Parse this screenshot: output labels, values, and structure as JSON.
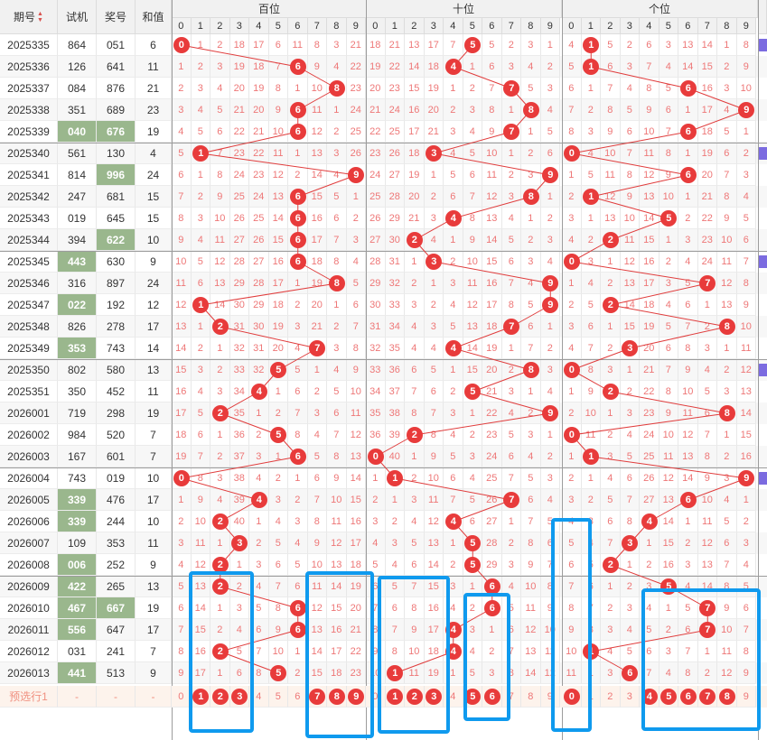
{
  "header": {
    "col_issue": "期号",
    "col_trial": "试机",
    "col_prize": "奖号",
    "col_sum": "和值",
    "group_hundreds": "百位",
    "group_tens": "十位",
    "group_units": "个位",
    "digits": [
      "0",
      "1",
      "2",
      "3",
      "4",
      "5",
      "6",
      "7",
      "8",
      "9"
    ]
  },
  "rows": [
    {
      "issue": "2025335",
      "trial": "864",
      "prize": "051",
      "sum": "6",
      "h": [
        "0",
        "1",
        "2",
        "18",
        "17",
        "6",
        "11",
        "8",
        "3",
        "21"
      ],
      "t": [
        "18",
        "21",
        "13",
        "17",
        "7",
        "5",
        "5",
        "2",
        "3",
        "1"
      ],
      "u": [
        "4",
        "1",
        "5",
        "2",
        "6",
        "3",
        "13",
        "14",
        "1",
        "8"
      ]
    },
    {
      "issue": "2025336",
      "trial": "126",
      "prize": "641",
      "sum": "11",
      "h": [
        "1",
        "2",
        "3",
        "19",
        "18",
        "7",
        "6",
        "9",
        "4",
        "22"
      ],
      "t": [
        "19",
        "22",
        "14",
        "18",
        "4",
        "1",
        "6",
        "3",
        "4",
        "2"
      ],
      "u": [
        "5",
        "1",
        "6",
        "3",
        "7",
        "4",
        "14",
        "15",
        "2",
        "9"
      ]
    },
    {
      "issue": "2025337",
      "trial": "084",
      "prize": "876",
      "sum": "21",
      "h": [
        "2",
        "3",
        "4",
        "20",
        "19",
        "8",
        "1",
        "10",
        "8",
        "23"
      ],
      "t": [
        "20",
        "23",
        "15",
        "19",
        "1",
        "2",
        "7",
        "7",
        "5",
        "3"
      ],
      "u": [
        "6",
        "1",
        "7",
        "4",
        "8",
        "5",
        "6",
        "16",
        "3",
        "10"
      ]
    },
    {
      "issue": "2025338",
      "trial": "351",
      "prize": "689",
      "sum": "23",
      "h": [
        "3",
        "4",
        "5",
        "21",
        "20",
        "9",
        "6",
        "11",
        "1",
        "24"
      ],
      "t": [
        "21",
        "24",
        "16",
        "20",
        "2",
        "3",
        "8",
        "1",
        "8",
        "4"
      ],
      "u": [
        "7",
        "2",
        "8",
        "5",
        "9",
        "6",
        "1",
        "17",
        "4",
        "9"
      ]
    },
    {
      "issue": "2025339",
      "trial": "040",
      "prize": "676",
      "sum": "19",
      "h": [
        "4",
        "5",
        "6",
        "22",
        "21",
        "10",
        "6",
        "12",
        "2",
        "25"
      ],
      "t": [
        "22",
        "25",
        "17",
        "21",
        "3",
        "4",
        "9",
        "7",
        "1",
        "5"
      ],
      "u": [
        "8",
        "3",
        "9",
        "6",
        "10",
        "7",
        "6",
        "18",
        "5",
        "1"
      ]
    },
    {
      "issue": "2025340",
      "trial": "561",
      "prize": "130",
      "sum": "4",
      "h": [
        "5",
        "1",
        "7",
        "23",
        "22",
        "11",
        "1",
        "13",
        "3",
        "26"
      ],
      "t": [
        "23",
        "26",
        "18",
        "3",
        "4",
        "5",
        "10",
        "1",
        "2",
        "6"
      ],
      "u": [
        "0",
        "4",
        "10",
        "7",
        "11",
        "8",
        "1",
        "19",
        "6",
        "2"
      ]
    },
    {
      "issue": "2025341",
      "trial": "814",
      "prize": "996",
      "sum": "24",
      "h": [
        "6",
        "1",
        "8",
        "24",
        "23",
        "12",
        "2",
        "14",
        "4",
        "9"
      ],
      "t": [
        "24",
        "27",
        "19",
        "1",
        "5",
        "6",
        "11",
        "2",
        "3",
        "9"
      ],
      "u": [
        "1",
        "5",
        "11",
        "8",
        "12",
        "9",
        "6",
        "20",
        "7",
        "3"
      ]
    },
    {
      "issue": "2025342",
      "trial": "247",
      "prize": "681",
      "sum": "15",
      "h": [
        "7",
        "2",
        "9",
        "25",
        "24",
        "13",
        "6",
        "15",
        "5",
        "1"
      ],
      "t": [
        "25",
        "28",
        "20",
        "2",
        "6",
        "7",
        "12",
        "3",
        "8",
        "1"
      ],
      "u": [
        "2",
        "1",
        "12",
        "9",
        "13",
        "10",
        "1",
        "21",
        "8",
        "4"
      ]
    },
    {
      "issue": "2025343",
      "trial": "019",
      "prize": "645",
      "sum": "15",
      "h": [
        "8",
        "3",
        "10",
        "26",
        "25",
        "14",
        "6",
        "16",
        "6",
        "2"
      ],
      "t": [
        "26",
        "29",
        "21",
        "3",
        "4",
        "8",
        "13",
        "4",
        "1",
        "2"
      ],
      "u": [
        "3",
        "1",
        "13",
        "10",
        "14",
        "5",
        "2",
        "22",
        "9",
        "5"
      ]
    },
    {
      "issue": "2025344",
      "trial": "394",
      "prize": "622",
      "sum": "10",
      "h": [
        "9",
        "4",
        "11",
        "27",
        "26",
        "15",
        "6",
        "17",
        "7",
        "3"
      ],
      "t": [
        "27",
        "30",
        "2",
        "4",
        "1",
        "9",
        "14",
        "5",
        "2",
        "3"
      ],
      "u": [
        "4",
        "2",
        "2",
        "11",
        "15",
        "1",
        "3",
        "23",
        "10",
        "6"
      ]
    },
    {
      "issue": "2025345",
      "trial": "443",
      "prize": "630",
      "sum": "9",
      "h": [
        "10",
        "5",
        "12",
        "28",
        "27",
        "16",
        "6",
        "18",
        "8",
        "4"
      ],
      "t": [
        "28",
        "31",
        "1",
        "3",
        "2",
        "10",
        "15",
        "6",
        "3",
        "4"
      ],
      "u": [
        "0",
        "3",
        "1",
        "12",
        "16",
        "2",
        "4",
        "24",
        "11",
        "7"
      ]
    },
    {
      "issue": "2025346",
      "trial": "316",
      "prize": "897",
      "sum": "24",
      "h": [
        "11",
        "6",
        "13",
        "29",
        "28",
        "17",
        "1",
        "19",
        "8",
        "5"
      ],
      "t": [
        "29",
        "32",
        "2",
        "1",
        "3",
        "11",
        "16",
        "7",
        "4",
        "9"
      ],
      "u": [
        "1",
        "4",
        "2",
        "13",
        "17",
        "3",
        "5",
        "7",
        "12",
        "8"
      ]
    },
    {
      "issue": "2025347",
      "trial": "022",
      "prize": "192",
      "sum": "12",
      "h": [
        "12",
        "1",
        "14",
        "30",
        "29",
        "18",
        "2",
        "20",
        "1",
        "6"
      ],
      "t": [
        "30",
        "33",
        "3",
        "2",
        "4",
        "12",
        "17",
        "8",
        "5",
        "9"
      ],
      "u": [
        "2",
        "5",
        "2",
        "14",
        "18",
        "4",
        "6",
        "1",
        "13",
        "9"
      ]
    },
    {
      "issue": "2025348",
      "trial": "826",
      "prize": "278",
      "sum": "17",
      "h": [
        "13",
        "1",
        "2",
        "31",
        "30",
        "19",
        "3",
        "21",
        "2",
        "7"
      ],
      "t": [
        "31",
        "34",
        "4",
        "3",
        "5",
        "13",
        "18",
        "7",
        "6",
        "1"
      ],
      "u": [
        "3",
        "6",
        "1",
        "15",
        "19",
        "5",
        "7",
        "2",
        "8",
        "10"
      ]
    },
    {
      "issue": "2025349",
      "trial": "353",
      "prize": "743",
      "sum": "14",
      "h": [
        "14",
        "2",
        "1",
        "32",
        "31",
        "20",
        "4",
        "7",
        "3",
        "8"
      ],
      "t": [
        "32",
        "35",
        "4",
        "4",
        "4",
        "14",
        "19",
        "1",
        "7",
        "2"
      ],
      "u": [
        "4",
        "7",
        "2",
        "3",
        "20",
        "6",
        "8",
        "3",
        "1",
        "11"
      ]
    },
    {
      "issue": "2025350",
      "trial": "802",
      "prize": "580",
      "sum": "13",
      "h": [
        "15",
        "3",
        "2",
        "33",
        "32",
        "5",
        "5",
        "1",
        "4",
        "9"
      ],
      "t": [
        "33",
        "36",
        "6",
        "5",
        "1",
        "15",
        "20",
        "2",
        "8",
        "3"
      ],
      "u": [
        "0",
        "8",
        "3",
        "1",
        "21",
        "7",
        "9",
        "4",
        "2",
        "12"
      ]
    },
    {
      "issue": "2025351",
      "trial": "350",
      "prize": "452",
      "sum": "11",
      "h": [
        "16",
        "4",
        "3",
        "34",
        "4",
        "1",
        "6",
        "2",
        "5",
        "10"
      ],
      "t": [
        "34",
        "37",
        "7",
        "6",
        "2",
        "5",
        "21",
        "3",
        "1",
        "4"
      ],
      "u": [
        "1",
        "9",
        "2",
        "2",
        "22",
        "8",
        "10",
        "5",
        "3",
        "13"
      ]
    },
    {
      "issue": "2026001",
      "trial": "719",
      "prize": "298",
      "sum": "19",
      "h": [
        "17",
        "5",
        "2",
        "35",
        "1",
        "2",
        "7",
        "3",
        "6",
        "11"
      ],
      "t": [
        "35",
        "38",
        "8",
        "7",
        "3",
        "1",
        "22",
        "4",
        "2",
        "9"
      ],
      "u": [
        "2",
        "10",
        "1",
        "3",
        "23",
        "9",
        "11",
        "6",
        "8",
        "14"
      ]
    },
    {
      "issue": "2026002",
      "trial": "984",
      "prize": "520",
      "sum": "7",
      "h": [
        "18",
        "6",
        "1",
        "36",
        "2",
        "5",
        "8",
        "4",
        "7",
        "12"
      ],
      "t": [
        "36",
        "39",
        "2",
        "8",
        "4",
        "2",
        "23",
        "5",
        "3",
        "1"
      ],
      "u": [
        "0",
        "11",
        "2",
        "4",
        "24",
        "10",
        "12",
        "7",
        "1",
        "15"
      ]
    },
    {
      "issue": "2026003",
      "trial": "167",
      "prize": "601",
      "sum": "7",
      "h": [
        "19",
        "7",
        "2",
        "37",
        "3",
        "1",
        "6",
        "5",
        "8",
        "13"
      ],
      "t": [
        "0",
        "40",
        "1",
        "9",
        "5",
        "3",
        "24",
        "6",
        "4",
        "2"
      ],
      "u": [
        "1",
        "1",
        "3",
        "5",
        "25",
        "11",
        "13",
        "8",
        "2",
        "16"
      ]
    },
    {
      "issue": "2026004",
      "trial": "743",
      "prize": "019",
      "sum": "10",
      "h": [
        "0",
        "8",
        "3",
        "38",
        "4",
        "2",
        "1",
        "6",
        "9",
        "14"
      ],
      "t": [
        "1",
        "1",
        "2",
        "10",
        "6",
        "4",
        "25",
        "7",
        "5",
        "3"
      ],
      "u": [
        "2",
        "1",
        "4",
        "6",
        "26",
        "12",
        "14",
        "9",
        "3",
        "9"
      ]
    },
    {
      "issue": "2026005",
      "trial": "339",
      "prize": "476",
      "sum": "17",
      "h": [
        "1",
        "9",
        "4",
        "39",
        "4",
        "3",
        "2",
        "7",
        "10",
        "15"
      ],
      "t": [
        "2",
        "1",
        "3",
        "11",
        "7",
        "5",
        "26",
        "7",
        "6",
        "4"
      ],
      "u": [
        "3",
        "2",
        "5",
        "7",
        "27",
        "13",
        "6",
        "10",
        "4",
        "1"
      ]
    },
    {
      "issue": "2026006",
      "trial": "339",
      "prize": "244",
      "sum": "10",
      "h": [
        "2",
        "10",
        "2",
        "40",
        "1",
        "4",
        "3",
        "8",
        "11",
        "16"
      ],
      "t": [
        "3",
        "2",
        "4",
        "12",
        "4",
        "6",
        "27",
        "1",
        "7",
        "5"
      ],
      "u": [
        "4",
        "3",
        "6",
        "8",
        "4",
        "14",
        "1",
        "11",
        "5",
        "2"
      ]
    },
    {
      "issue": "2026007",
      "trial": "109",
      "prize": "353",
      "sum": "11",
      "h": [
        "3",
        "11",
        "1",
        "3",
        "2",
        "5",
        "4",
        "9",
        "12",
        "17"
      ],
      "t": [
        "4",
        "3",
        "5",
        "13",
        "1",
        "5",
        "28",
        "2",
        "8",
        "6"
      ],
      "u": [
        "5",
        "4",
        "7",
        "3",
        "1",
        "15",
        "2",
        "12",
        "6",
        "3"
      ]
    },
    {
      "issue": "2026008",
      "trial": "006",
      "prize": "252",
      "sum": "9",
      "h": [
        "4",
        "12",
        "2",
        "1",
        "3",
        "6",
        "5",
        "10",
        "13",
        "18"
      ],
      "t": [
        "5",
        "4",
        "6",
        "14",
        "2",
        "5",
        "29",
        "3",
        "9",
        "7"
      ],
      "u": [
        "6",
        "5",
        "2",
        "1",
        "2",
        "16",
        "3",
        "13",
        "7",
        "4"
      ]
    },
    {
      "issue": "2026009",
      "trial": "422",
      "prize": "265",
      "sum": "13",
      "h": [
        "5",
        "13",
        "2",
        "2",
        "4",
        "7",
        "6",
        "11",
        "14",
        "19"
      ],
      "t": [
        "6",
        "5",
        "7",
        "15",
        "3",
        "1",
        "6",
        "4",
        "10",
        "8"
      ],
      "u": [
        "7",
        "6",
        "1",
        "2",
        "3",
        "5",
        "4",
        "14",
        "8",
        "5"
      ]
    },
    {
      "issue": "2026010",
      "trial": "467",
      "prize": "667",
      "sum": "19",
      "h": [
        "6",
        "14",
        "1",
        "3",
        "5",
        "8",
        "6",
        "12",
        "15",
        "20"
      ],
      "t": [
        "7",
        "6",
        "8",
        "16",
        "4",
        "2",
        "6",
        "5",
        "11",
        "9"
      ],
      "u": [
        "8",
        "7",
        "2",
        "3",
        "4",
        "1",
        "5",
        "7",
        "9",
        "6"
      ]
    },
    {
      "issue": "2026011",
      "trial": "556",
      "prize": "647",
      "sum": "17",
      "h": [
        "7",
        "15",
        "2",
        "4",
        "6",
        "9",
        "6",
        "13",
        "16",
        "21"
      ],
      "t": [
        "8",
        "7",
        "9",
        "17",
        "4",
        "3",
        "1",
        "6",
        "12",
        "10"
      ],
      "u": [
        "9",
        "8",
        "3",
        "4",
        "5",
        "2",
        "6",
        "7",
        "10",
        "7"
      ]
    },
    {
      "issue": "2026012",
      "trial": "031",
      "prize": "241",
      "sum": "7",
      "h": [
        "8",
        "16",
        "2",
        "5",
        "7",
        "10",
        "1",
        "14",
        "17",
        "22"
      ],
      "t": [
        "9",
        "8",
        "10",
        "18",
        "4",
        "4",
        "2",
        "7",
        "13",
        "11"
      ],
      "u": [
        "10",
        "1",
        "4",
        "5",
        "6",
        "3",
        "7",
        "1",
        "11",
        "8"
      ]
    },
    {
      "issue": "2026013",
      "trial": "441",
      "prize": "513",
      "sum": "9",
      "h": [
        "9",
        "17",
        "1",
        "6",
        "8",
        "5",
        "2",
        "15",
        "18",
        "23"
      ],
      "t": [
        "10",
        "1",
        "11",
        "19",
        "1",
        "5",
        "3",
        "8",
        "14",
        "12"
      ],
      "u": [
        "11",
        "1",
        "3",
        "6",
        "7",
        "4",
        "8",
        "2",
        "12",
        "9"
      ]
    }
  ],
  "green_trial_rows": [
    4,
    10,
    12,
    14,
    21,
    22,
    24,
    25,
    26,
    27,
    29
  ],
  "green_prize_rows": [
    4,
    6,
    9,
    26
  ],
  "prediction": {
    "label": "预选行1",
    "dashes": [
      "-",
      "-",
      "-"
    ],
    "h_selected": [
      "1",
      "2",
      "3",
      "7",
      "8",
      "9"
    ],
    "h_plain": [
      "0",
      "4",
      "5",
      "6"
    ],
    "t_selected": [
      "1",
      "2",
      "3",
      "5",
      "6"
    ],
    "t_plain": [
      "0",
      "4",
      "7",
      "8",
      "9"
    ],
    "u_selected": [
      "0",
      "4",
      "5",
      "6",
      "7",
      "8"
    ],
    "u_plain": [
      "1",
      "2",
      "3",
      "9"
    ]
  }
}
